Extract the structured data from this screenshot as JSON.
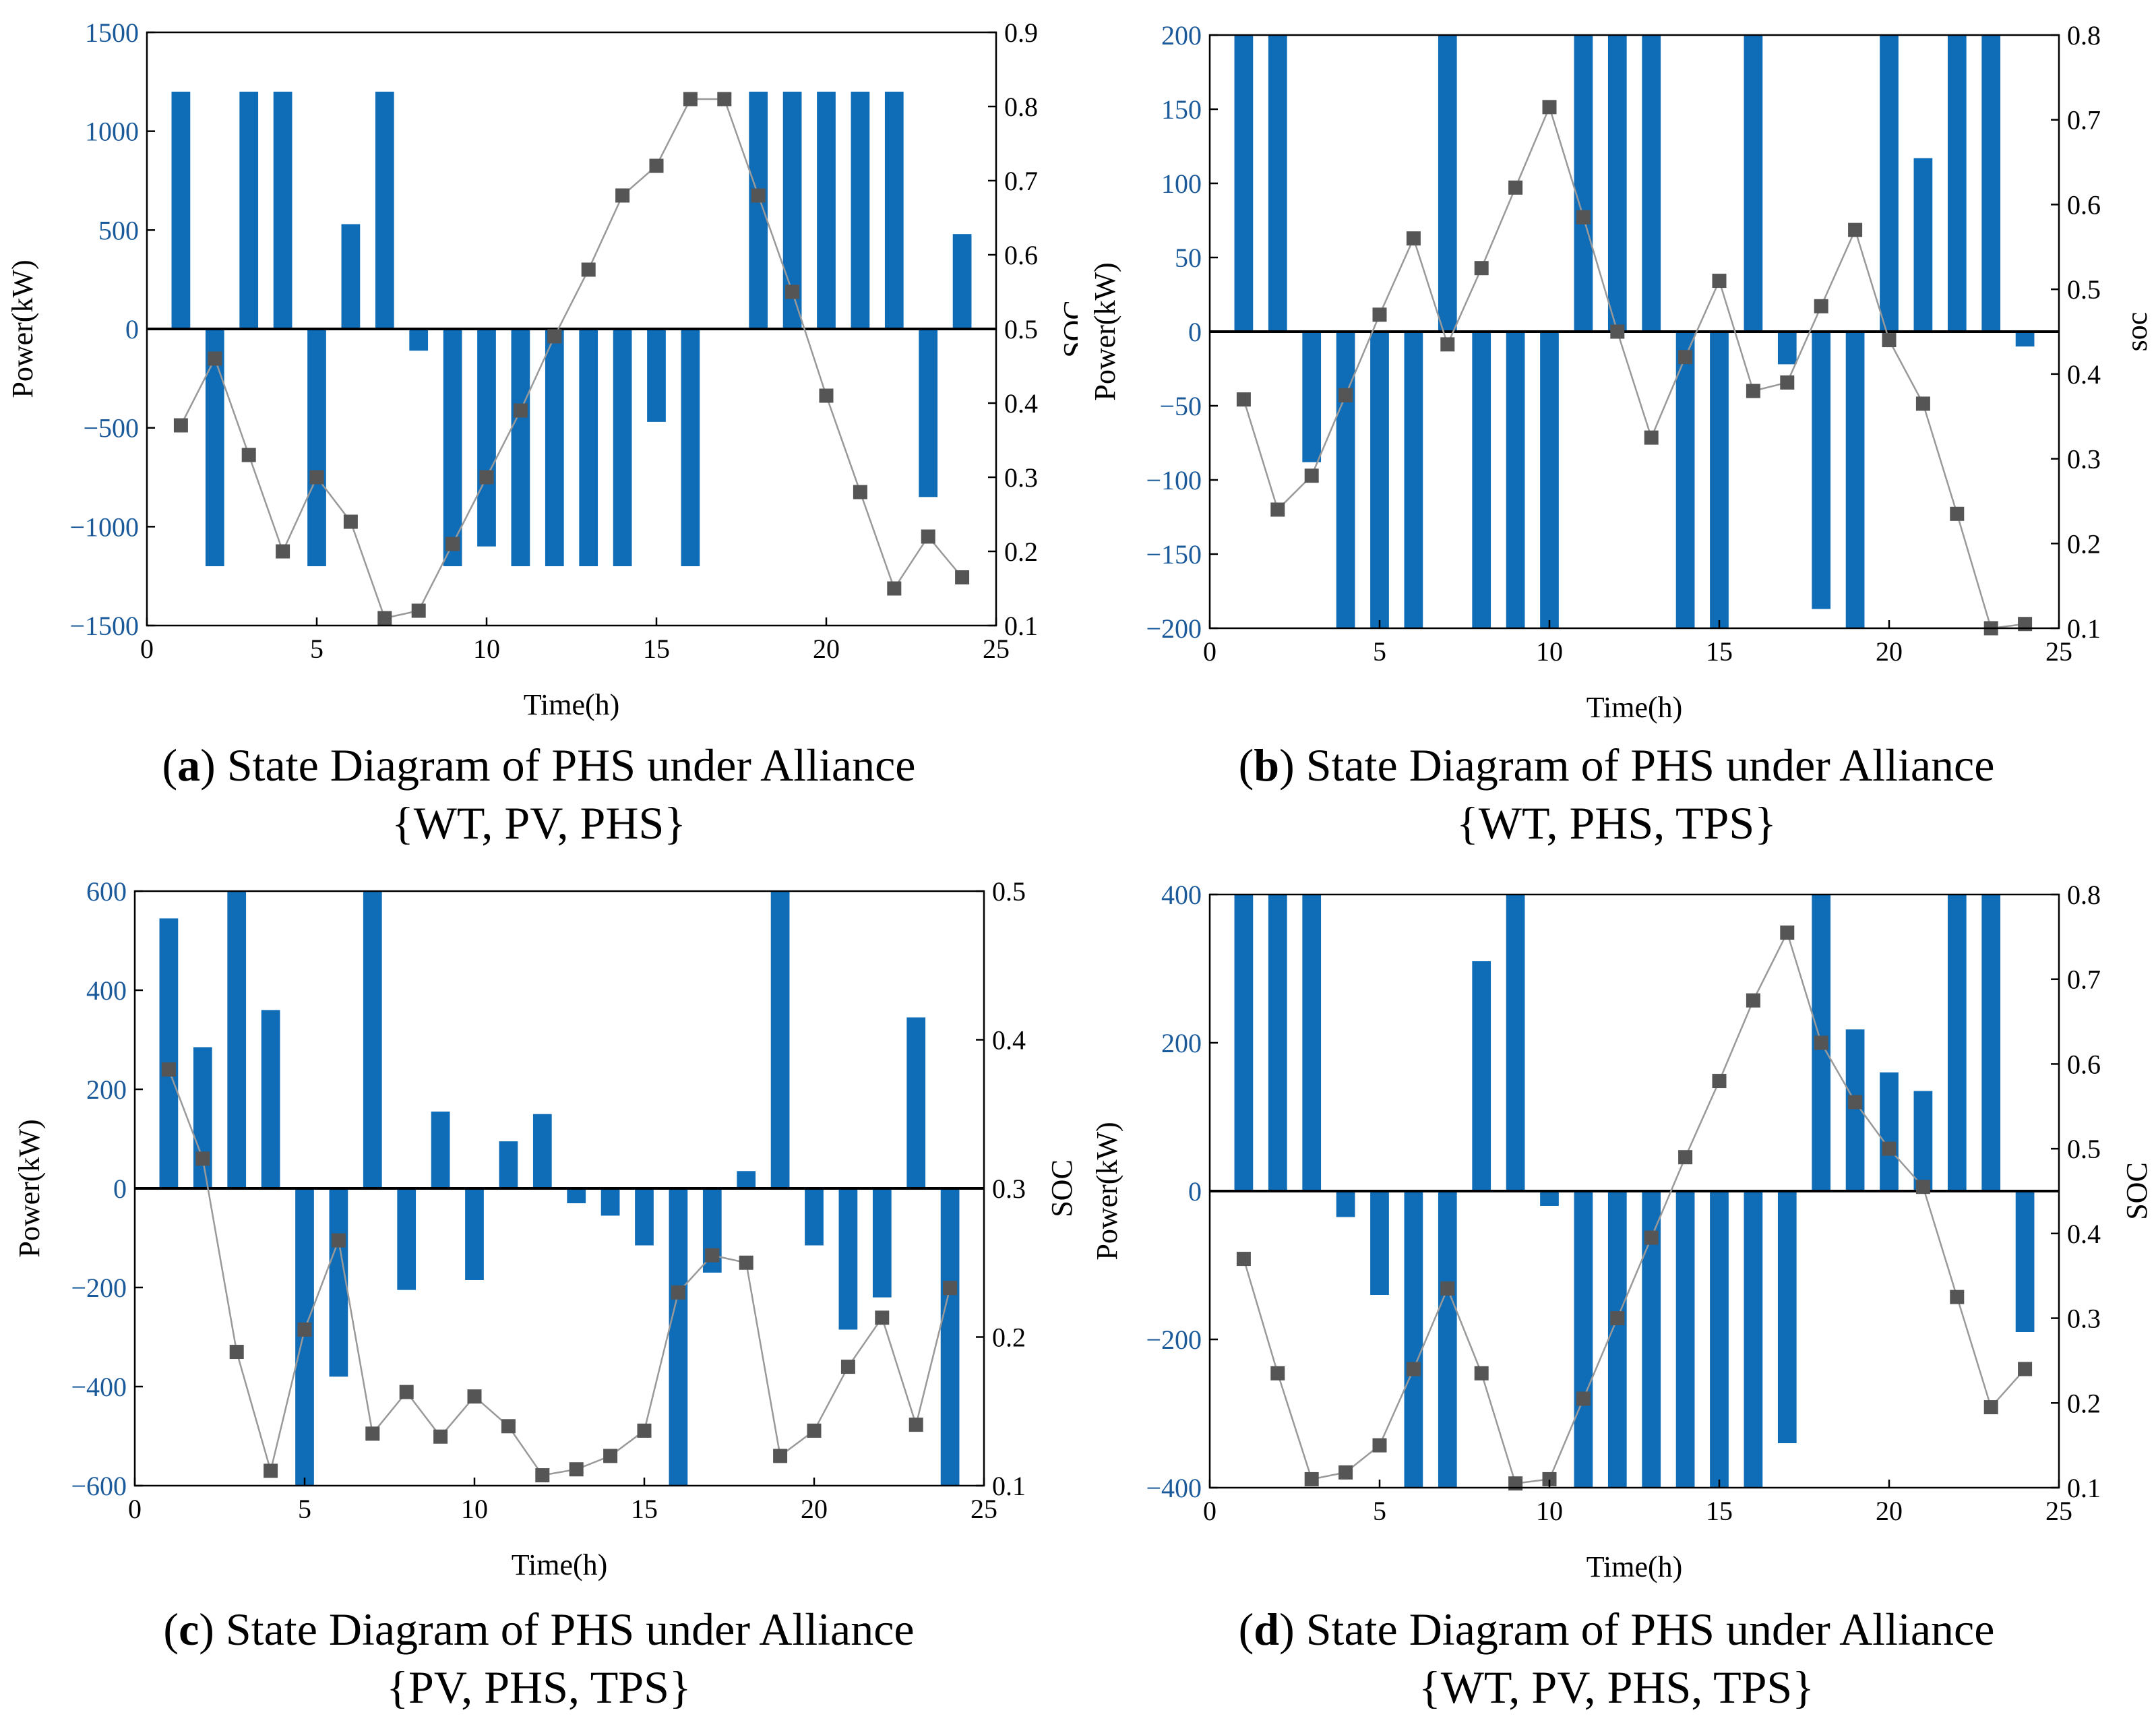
{
  "colors": {
    "bar": "#0f6cb6",
    "soc_marker": "#555555",
    "soc_line": "#999999",
    "left_axis_text": "#1a5a9a",
    "axis": "#000000"
  },
  "panels": [
    {
      "label": "a",
      "caption_line1": "State Diagram of PHS under Alliance",
      "caption_line2": "{WT, PV, PHS}",
      "xlabel": "Time(h)",
      "ylabel_left": "Power(kW)",
      "ylabel_right": "SOC"
    },
    {
      "label": "b",
      "caption_line1": "State Diagram of PHS under Alliance",
      "caption_line2": "{WT, PHS, TPS}",
      "xlabel": "Time(h)",
      "ylabel_left": "Power(kW)",
      "ylabel_right": "soc"
    },
    {
      "label": "c",
      "caption_line1": "State Diagram of PHS under Alliance",
      "caption_line2": "{PV, PHS, TPS}",
      "xlabel": "Time(h)",
      "ylabel_left": "Power(kW)",
      "ylabel_right": "SOC"
    },
    {
      "label": "d",
      "caption_line1": "State Diagram of PHS under Alliance",
      "caption_line2": "{WT, PV, PHS, TPS}",
      "xlabel": "Time(h)",
      "ylabel_left": "Power(kW)",
      "ylabel_right": "SOC"
    }
  ],
  "chart_data": [
    {
      "type": "bar",
      "title": "State Diagram of PHS under Alliance {WT, PV, PHS}",
      "xlabel": "Time(h)",
      "ylabel": "Power(kW)",
      "y2label": "SOC",
      "xlim": [
        0,
        25
      ],
      "xticks": [
        0,
        5,
        10,
        15,
        20,
        25
      ],
      "ylim": [
        -1500,
        1500
      ],
      "yticks": [
        -1500,
        -1000,
        -500,
        0,
        500,
        1000,
        1500
      ],
      "y2lim": [
        0.1,
        0.9
      ],
      "y2ticks": [
        0.1,
        0.2,
        0.3,
        0.4,
        0.5,
        0.6,
        0.7,
        0.8,
        0.9
      ],
      "x": [
        1,
        2,
        3,
        4,
        5,
        6,
        7,
        8,
        9,
        10,
        11,
        12,
        13,
        14,
        15,
        16,
        17,
        18,
        19,
        20,
        21,
        22,
        23,
        24
      ],
      "series": [
        {
          "name": "Power",
          "kind": "bar",
          "axis": "left",
          "values": [
            1200,
            -1200,
            1200,
            1200,
            -1200,
            530,
            1200,
            -110,
            -1200,
            -1100,
            -1200,
            -1200,
            -1200,
            -1200,
            -470,
            -1200,
            5,
            1200,
            1200,
            1200,
            1200,
            1200,
            -850,
            480
          ]
        },
        {
          "name": "SOC",
          "kind": "line-marker",
          "axis": "right",
          "values": [
            0.37,
            0.46,
            0.33,
            0.2,
            0.3,
            0.24,
            0.11,
            0.12,
            0.21,
            0.3,
            0.39,
            0.49,
            0.58,
            0.68,
            0.72,
            0.81,
            0.81,
            0.68,
            0.55,
            0.41,
            0.28,
            0.15,
            0.22,
            0.165
          ]
        }
      ]
    },
    {
      "type": "bar",
      "title": "State Diagram of PHS under Alliance {WT, PHS, TPS}",
      "xlabel": "Time(h)",
      "ylabel": "Power(kW)",
      "y2label": "soc",
      "xlim": [
        0,
        25
      ],
      "xticks": [
        0,
        5,
        10,
        15,
        20,
        25
      ],
      "ylim": [
        -200,
        200
      ],
      "yticks": [
        -200,
        -150,
        -100,
        -50,
        0,
        50,
        100,
        150,
        200
      ],
      "y2lim": [
        0.1,
        0.8
      ],
      "y2ticks": [
        0.1,
        0.2,
        0.3,
        0.4,
        0.5,
        0.6,
        0.7,
        0.8
      ],
      "x": [
        1,
        2,
        3,
        4,
        5,
        6,
        7,
        8,
        9,
        10,
        11,
        12,
        13,
        14,
        15,
        16,
        17,
        18,
        19,
        20,
        21,
        22,
        23,
        24
      ],
      "series": [
        {
          "name": "Power",
          "kind": "bar",
          "axis": "left",
          "values": [
            200,
            200,
            -88,
            -200,
            -200,
            -200,
            200,
            -200,
            -200,
            -200,
            200,
            200,
            200,
            -200,
            -200,
            200,
            -22,
            -187,
            -200,
            200,
            117,
            200,
            200,
            -10
          ]
        },
        {
          "name": "soc",
          "kind": "line-marker",
          "axis": "right",
          "values": [
            0.37,
            0.24,
            0.28,
            0.375,
            0.47,
            0.56,
            0.435,
            0.525,
            0.62,
            0.715,
            0.585,
            0.45,
            0.325,
            0.42,
            0.51,
            0.38,
            0.39,
            0.48,
            0.57,
            0.44,
            0.365,
            0.235,
            0.1,
            0.105
          ]
        }
      ]
    },
    {
      "type": "bar",
      "title": "State Diagram of PHS under Alliance {PV, PHS, TPS}",
      "xlabel": "Time(h)",
      "ylabel": "Power(kW)",
      "y2label": "SOC",
      "xlim": [
        0,
        25
      ],
      "xticks": [
        0,
        5,
        10,
        15,
        20,
        25
      ],
      "ylim": [
        -600,
        600
      ],
      "yticks": [
        -600,
        -400,
        -200,
        0,
        200,
        400,
        600
      ],
      "y2lim": [
        0.1,
        0.5
      ],
      "y2ticks": [
        0.1,
        0.2,
        0.3,
        0.4,
        0.5
      ],
      "x": [
        1,
        2,
        3,
        4,
        5,
        6,
        7,
        8,
        9,
        10,
        11,
        12,
        13,
        14,
        15,
        16,
        17,
        18,
        19,
        20,
        21,
        22,
        23,
        24
      ],
      "series": [
        {
          "name": "Power",
          "kind": "bar",
          "axis": "left",
          "values": [
            545,
            285,
            600,
            360,
            -600,
            -380,
            600,
            -205,
            155,
            -185,
            95,
            150,
            -30,
            -55,
            -115,
            -600,
            -170,
            35,
            600,
            -115,
            -285,
            -220,
            345,
            -600
          ]
        },
        {
          "name": "SOC",
          "kind": "line-marker",
          "axis": "right",
          "values": [
            0.38,
            0.32,
            0.19,
            0.11,
            0.205,
            0.265,
            0.135,
            0.163,
            0.133,
            0.16,
            0.14,
            0.107,
            0.111,
            0.12,
            0.137,
            0.23,
            0.255,
            0.25,
            0.12,
            0.137,
            0.18,
            0.213,
            0.141,
            0.233
          ]
        }
      ]
    },
    {
      "type": "bar",
      "title": "State Diagram of PHS under Alliance {WT, PV, PHS, TPS}",
      "xlabel": "Time(h)",
      "ylabel": "Power(kW)",
      "y2label": "SOC",
      "xlim": [
        0,
        25
      ],
      "xticks": [
        0,
        5,
        10,
        15,
        20,
        25
      ],
      "ylim": [
        -400,
        400
      ],
      "yticks": [
        -400,
        -200,
        0,
        200,
        400
      ],
      "y2lim": [
        0.1,
        0.8
      ],
      "y2ticks": [
        0.1,
        0.2,
        0.3,
        0.4,
        0.5,
        0.6,
        0.7,
        0.8
      ],
      "x": [
        1,
        2,
        3,
        4,
        5,
        6,
        7,
        8,
        9,
        10,
        11,
        12,
        13,
        14,
        15,
        16,
        17,
        18,
        19,
        20,
        21,
        22,
        23,
        24
      ],
      "series": [
        {
          "name": "Power",
          "kind": "bar",
          "axis": "left",
          "values": [
            400,
            400,
            400,
            -35,
            -140,
            -400,
            -400,
            310,
            400,
            -20,
            -400,
            -400,
            -400,
            -400,
            -400,
            -400,
            -340,
            400,
            218,
            160,
            135,
            400,
            400,
            -190
          ]
        },
        {
          "name": "SOC",
          "kind": "line-marker",
          "axis": "right",
          "values": [
            0.37,
            0.235,
            0.11,
            0.118,
            0.15,
            0.24,
            0.335,
            0.235,
            0.105,
            0.11,
            0.205,
            0.3,
            0.395,
            0.49,
            0.58,
            0.675,
            0.755,
            0.625,
            0.555,
            0.5,
            0.455,
            0.325,
            0.195,
            0.24
          ]
        }
      ]
    }
  ]
}
